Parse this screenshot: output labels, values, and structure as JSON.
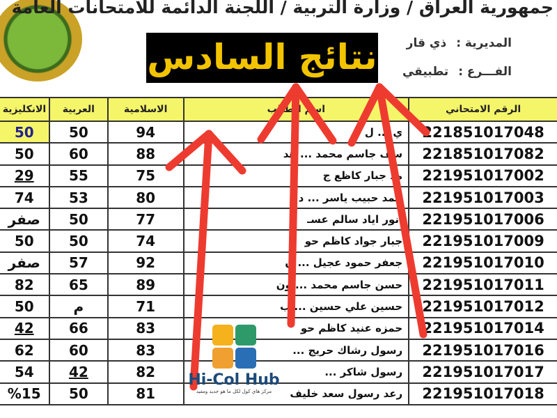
{
  "header": {
    "line": "جمهورية العراق / وزارة التربية / اللجنة الدائمة للامتحانات العامة",
    "banner": "نتائج السادس",
    "directorate_label": "المديرية :",
    "directorate_value": "ذي قار",
    "branch_label": "الفـــرع :",
    "branch_value": "تطبيقي"
  },
  "table": {
    "columns": [
      "الانكليزية",
      "العربية",
      "الاسلامية",
      "اسم الطالب",
      "الرقم الامتحاني"
    ],
    "rows": [
      {
        "english": "50",
        "arabic": "50",
        "islamic": "94",
        "name": "ي ... ل",
        "number": "221851017048"
      },
      {
        "english": "50",
        "arabic": "60",
        "islamic": "88",
        "name": "سف جاسم محمد ... هد",
        "number": "221851017082"
      },
      {
        "english": "29",
        "arabic": "55",
        "islamic": "75",
        "name": "مد جبار كاظع ج",
        "number": "221951017002"
      },
      {
        "english": "74",
        "arabic": "53",
        "islamic": "80",
        "name": "حمد حبيب ياسر ... د",
        "number": "221951017003"
      },
      {
        "english": "صفر",
        "arabic": "50",
        "islamic": "77",
        "name": "انور اياد سالم عسـ",
        "number": "221951017006"
      },
      {
        "english": "50",
        "arabic": "50",
        "islamic": "74",
        "name": "جبار جواد كاظم حو",
        "number": "221951017009"
      },
      {
        "english": "صفر",
        "arabic": "57",
        "islamic": "92",
        "name": "جعفر حمود عجيل ... ن",
        "number": "221951017010"
      },
      {
        "english": "82",
        "arabic": "65",
        "islamic": "89",
        "name": "حسن جاسم محمد ... ون",
        "number": "221951017011"
      },
      {
        "english": "50",
        "arabic": "م",
        "islamic": "71",
        "name": "حسين علي حسين ... ب",
        "number": "221951017012"
      },
      {
        "english": "42",
        "arabic": "66",
        "islamic": "83",
        "name": "حمزه عنيد كاظم حو",
        "number": "221951017014"
      },
      {
        "english": "62",
        "arabic": "60",
        "islamic": "83",
        "name": "رسول رشاك حريج ...",
        "number": "221951017016"
      },
      {
        "english": "54",
        "arabic": "42",
        "islamic": "82",
        "name": "رسول شاكر ...",
        "number": "221951017017"
      },
      {
        "english": "%15",
        "arabic": "50",
        "islamic": "81",
        "name": "رعد رسول سعد خليف",
        "number": "221951017018"
      }
    ]
  },
  "watermark": {
    "title": "Hi-Col Hub",
    "subtitle": "مركز هاي كول لكل ما هو جديد ومفيد"
  },
  "colors": {
    "header_fill": "#f5f56a",
    "banner_text": "#f2c400",
    "arrow": "#ee3b30"
  }
}
